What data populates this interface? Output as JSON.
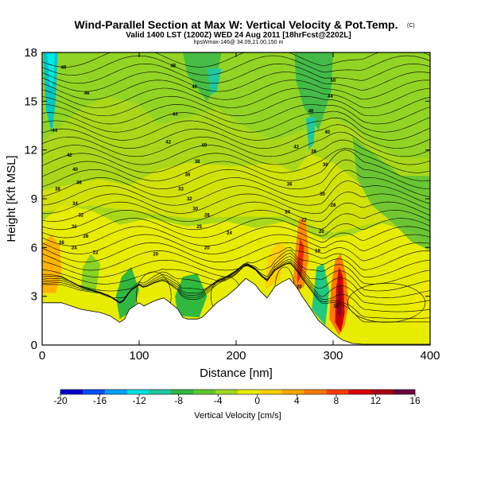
{
  "title": "Wind-Parallel Section at Max W: Vertical Velocity & Pot.Temp.",
  "title_mark": "(C)",
  "subtitle": "Valid 1400 LST (1200Z) WED 24 Aug 2011 [18hrFcst@2202L]",
  "subtitle2": "hpsWmax-146@ 34.09,21.00,150 m",
  "chart_data": {
    "type": "heatmap",
    "xlabel": "Distance [nm]",
    "ylabel": "Height [Kft MSL]",
    "xlim": [
      0,
      400
    ],
    "ylim": [
      0,
      18
    ],
    "xticks": [
      "0",
      "100",
      "200",
      "300",
      "400"
    ],
    "yticks": [
      "0",
      "3",
      "6",
      "9",
      "12",
      "15",
      "18"
    ],
    "colorbar": {
      "label": "Vertical Velocity [cm/s]",
      "ticks": [
        "-20",
        "-16",
        "-12",
        "-8",
        "-4",
        "0",
        "4",
        "8",
        "12",
        "16"
      ],
      "range": [
        -20,
        16
      ],
      "colors": [
        "#0000cc",
        "#0050ff",
        "#00a0ff",
        "#00e0e0",
        "#20c8a0",
        "#30b840",
        "#60c830",
        "#a0d820",
        "#e8ec00",
        "#ffd200",
        "#ffa800",
        "#ff7a00",
        "#ff3c00",
        "#dd0000",
        "#a80018",
        "#6e0040"
      ]
    },
    "terrain": [
      [
        0,
        2.6
      ],
      [
        5,
        2.6
      ],
      [
        10,
        2.6
      ],
      [
        20,
        2.6
      ],
      [
        30,
        2.4
      ],
      [
        40,
        2.2
      ],
      [
        50,
        2.1
      ],
      [
        60,
        2.0
      ],
      [
        70,
        1.8
      ],
      [
        75,
        1.6
      ],
      [
        80,
        1.4
      ],
      [
        85,
        1.6
      ],
      [
        90,
        2.2
      ],
      [
        100,
        2.6
      ],
      [
        105,
        2.4
      ],
      [
        115,
        2.7
      ],
      [
        125,
        2.9
      ],
      [
        130,
        2.7
      ],
      [
        140,
        2.2
      ],
      [
        145,
        1.7
      ],
      [
        150,
        1.6
      ],
      [
        160,
        1.6
      ],
      [
        165,
        1.7
      ],
      [
        170,
        2.0
      ],
      [
        180,
        2.6
      ],
      [
        190,
        3.0
      ],
      [
        200,
        3.5
      ],
      [
        210,
        4.1
      ],
      [
        220,
        3.7
      ],
      [
        225,
        3.3
      ],
      [
        232,
        2.9
      ],
      [
        240,
        3.6
      ],
      [
        248,
        3.9
      ],
      [
        255,
        4.1
      ],
      [
        262,
        3.6
      ],
      [
        268,
        3.0
      ],
      [
        275,
        2.4
      ],
      [
        285,
        1.5
      ],
      [
        295,
        1.0
      ],
      [
        305,
        0.5
      ],
      [
        310,
        0.3
      ],
      [
        320,
        0.1
      ],
      [
        330,
        0.05
      ],
      [
        350,
        0.05
      ],
      [
        380,
        0.05
      ],
      [
        400,
        0.05
      ]
    ],
    "contour_labels": [
      {
        "x": 22,
        "y": 17.1,
        "v": "48"
      },
      {
        "x": 135,
        "y": 17.2,
        "v": "48"
      },
      {
        "x": 46,
        "y": 15.5,
        "v": "46"
      },
      {
        "x": 157,
        "y": 15.9,
        "v": "46"
      },
      {
        "x": 277,
        "y": 14.4,
        "v": "48"
      },
      {
        "x": 300,
        "y": 16.3,
        "v": "50"
      },
      {
        "x": 297,
        "y": 15.3,
        "v": "44"
      },
      {
        "x": 137,
        "y": 14.2,
        "v": "44"
      },
      {
        "x": 13,
        "y": 13.2,
        "v": "44"
      },
      {
        "x": 262,
        "y": 12.2,
        "v": "42"
      },
      {
        "x": 294,
        "y": 13.1,
        "v": "40"
      },
      {
        "x": 130,
        "y": 12.5,
        "v": "42"
      },
      {
        "x": 28,
        "y": 11.7,
        "v": "42"
      },
      {
        "x": 167,
        "y": 12.3,
        "v": "40"
      },
      {
        "x": 280,
        "y": 11.9,
        "v": "38"
      },
      {
        "x": 34,
        "y": 10.8,
        "v": "40"
      },
      {
        "x": 160,
        "y": 11.3,
        "v": "38"
      },
      {
        "x": 292,
        "y": 11.1,
        "v": "36"
      },
      {
        "x": 16,
        "y": 9.6,
        "v": "38"
      },
      {
        "x": 38,
        "y": 10.0,
        "v": "38"
      },
      {
        "x": 150,
        "y": 10.5,
        "v": "36"
      },
      {
        "x": 255,
        "y": 9.9,
        "v": "36"
      },
      {
        "x": 289,
        "y": 9.3,
        "v": "30"
      },
      {
        "x": 34,
        "y": 8.7,
        "v": "34"
      },
      {
        "x": 143,
        "y": 9.6,
        "v": "33"
      },
      {
        "x": 300,
        "y": 8.6,
        "v": "28"
      },
      {
        "x": 40,
        "y": 8.0,
        "v": "32"
      },
      {
        "x": 152,
        "y": 9.0,
        "v": "32"
      },
      {
        "x": 158,
        "y": 8.4,
        "v": "30"
      },
      {
        "x": 253,
        "y": 8.2,
        "v": "24"
      },
      {
        "x": 33,
        "y": 7.3,
        "v": "30"
      },
      {
        "x": 170,
        "y": 8.0,
        "v": "28"
      },
      {
        "x": 270,
        "y": 7.7,
        "v": "22"
      },
      {
        "x": 45,
        "y": 6.7,
        "v": "28"
      },
      {
        "x": 162,
        "y": 7.3,
        "v": "25"
      },
      {
        "x": 193,
        "y": 6.9,
        "v": "24"
      },
      {
        "x": 288,
        "y": 7.0,
        "v": "20"
      },
      {
        "x": 20,
        "y": 6.3,
        "v": "26"
      },
      {
        "x": 33,
        "y": 6.0,
        "v": "24"
      },
      {
        "x": 55,
        "y": 5.7,
        "v": "22"
      },
      {
        "x": 117,
        "y": 5.6,
        "v": "20"
      },
      {
        "x": 170,
        "y": 6.0,
        "v": "20"
      },
      {
        "x": 284,
        "y": 5.8,
        "v": "18"
      },
      {
        "x": 265,
        "y": 3.6,
        "v": "20"
      },
      {
        "x": 303,
        "y": 2.4,
        "v": "18"
      }
    ]
  }
}
